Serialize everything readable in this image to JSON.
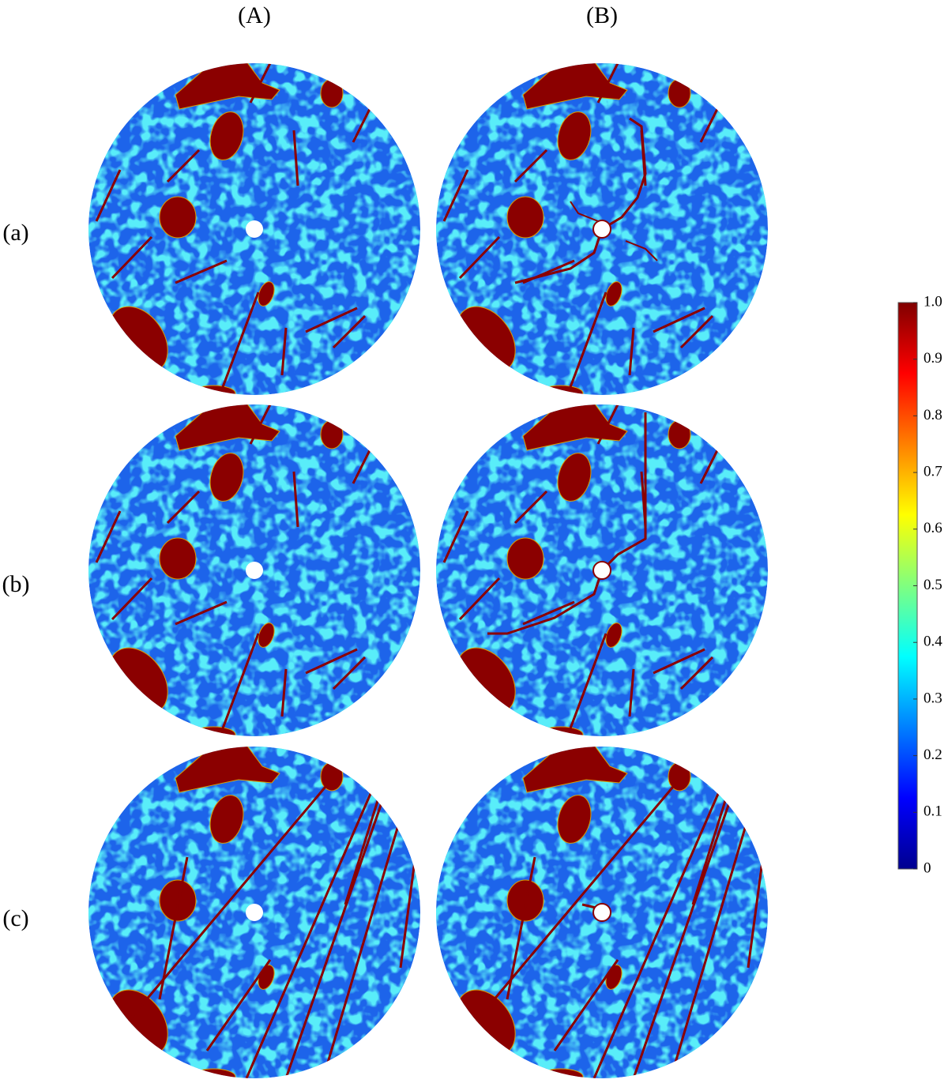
{
  "columns": [
    "(A)",
    "(B)"
  ],
  "rows": [
    "(a)",
    "(b)",
    "(c)"
  ],
  "colorbar": {
    "ylim": [
      0,
      1
    ],
    "ticks": [
      0,
      0.1,
      0.2,
      0.3,
      0.4,
      0.5,
      0.6,
      0.7,
      0.8,
      0.9,
      {
        "value": 1,
        "label": "1.0"
      }
    ]
  }
}
